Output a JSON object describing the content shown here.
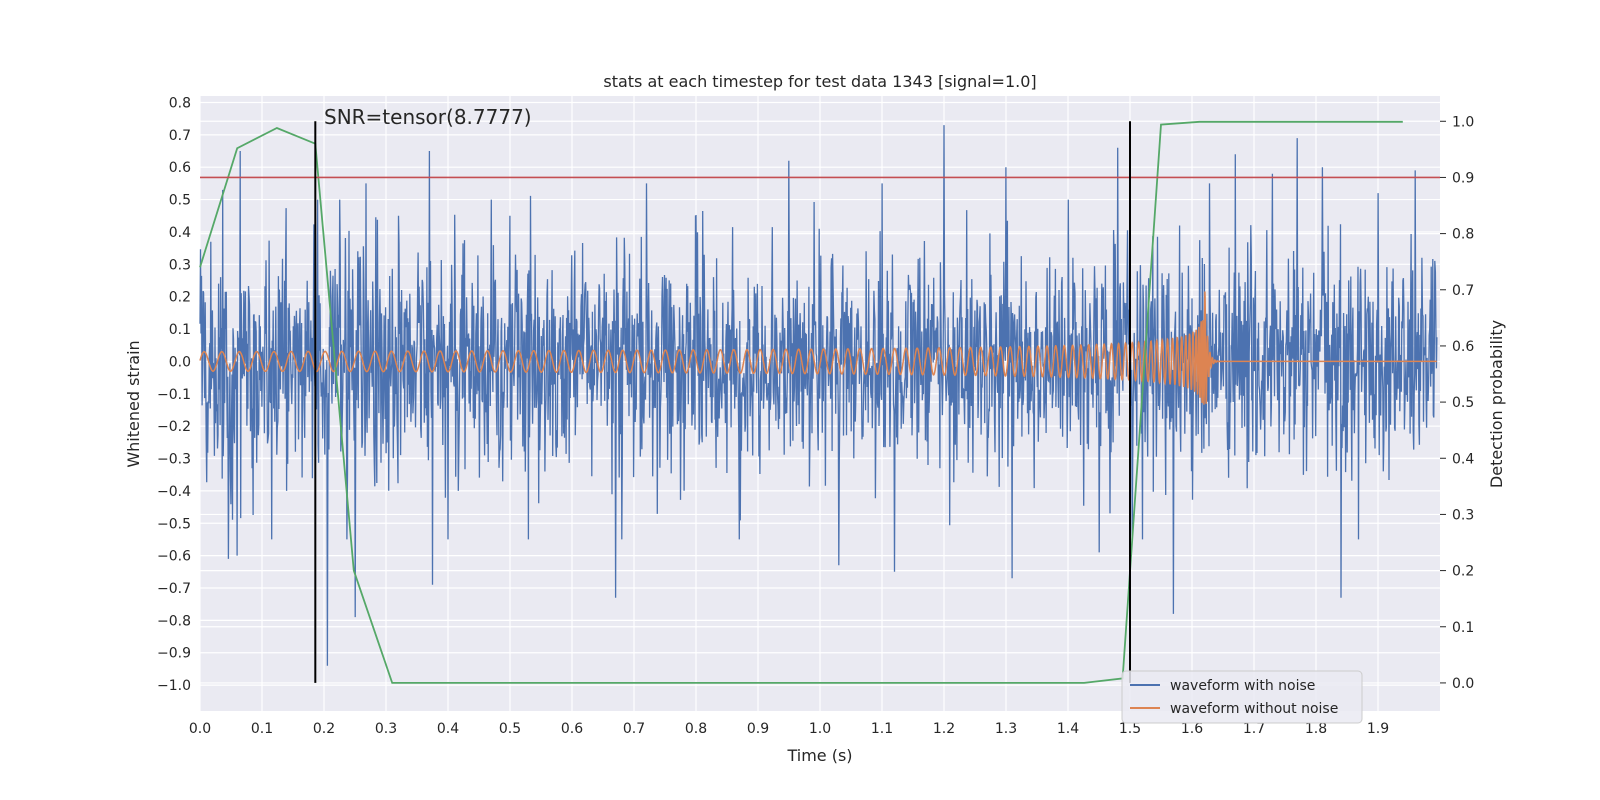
{
  "chart_data": {
    "type": "line",
    "title": "stats at each timestep for test data 1343 [signal=1.0]",
    "xlabel": "Time (s)",
    "ylabel_left": "Whitened strain",
    "ylabel_right": "Detection probability",
    "xlim": [
      0.0,
      2.0
    ],
    "ylim_left": [
      -1.08,
      0.82
    ],
    "ylim_right": [
      -0.05,
      1.045
    ],
    "x_ticks": [
      "0.0",
      "0.1",
      "0.2",
      "0.3",
      "0.4",
      "0.5",
      "0.6",
      "0.7",
      "0.8",
      "0.9",
      "1.0",
      "1.1",
      "1.2",
      "1.3",
      "1.4",
      "1.5",
      "1.6",
      "1.7",
      "1.8",
      "1.9"
    ],
    "y_ticks_left": [
      "0.8",
      "0.7",
      "0.6",
      "0.5",
      "0.4",
      "0.3",
      "0.2",
      "0.1",
      "0.0",
      "−0.1",
      "−0.2",
      "−0.3",
      "−0.4",
      "−0.5",
      "−0.6",
      "−0.7",
      "−0.8",
      "−0.9",
      "−1.0"
    ],
    "y_ticks_right": [
      "1.0",
      "0.9",
      "0.8",
      "0.7",
      "0.6",
      "0.5",
      "0.4",
      "0.3",
      "0.2",
      "0.1",
      "0.0"
    ],
    "grid": true,
    "legend_position": "bottom-right",
    "annotation": "SNR=tensor(8.7777)",
    "series": [
      {
        "name": "waveform with noise",
        "color": "#4c72b0",
        "axis": "left",
        "kind": "noise",
        "approx_std": 0.2,
        "peaks": [
          [
            0.037,
            0.53
          ],
          [
            0.046,
            -0.61
          ],
          [
            0.06,
            -0.6
          ],
          [
            0.065,
            0.65
          ],
          [
            0.14,
            -0.4
          ],
          [
            0.19,
            0.5
          ],
          [
            0.205,
            -0.94
          ],
          [
            0.21,
            -1.0
          ],
          [
            0.21,
            0.28
          ],
          [
            0.225,
            0.5
          ],
          [
            0.237,
            -0.55
          ],
          [
            0.25,
            -0.79
          ],
          [
            0.268,
            0.55
          ],
          [
            0.32,
            0.45
          ],
          [
            0.37,
            0.65
          ],
          [
            0.375,
            -0.69
          ],
          [
            0.4,
            0.6
          ],
          [
            0.4,
            -0.55
          ],
          [
            0.47,
            0.5
          ],
          [
            0.5,
            0.45
          ],
          [
            0.53,
            -0.55
          ],
          [
            0.67,
            -0.73
          ],
          [
            0.68,
            -0.55
          ],
          [
            0.72,
            0.55
          ],
          [
            0.8,
            0.45
          ],
          [
            0.87,
            -0.55
          ],
          [
            0.95,
            0.62
          ],
          [
            1.03,
            -0.63
          ],
          [
            1.1,
            0.55
          ],
          [
            1.12,
            -0.65
          ],
          [
            1.2,
            0.73
          ],
          [
            1.3,
            0.6
          ],
          [
            1.31,
            -0.67
          ],
          [
            1.4,
            0.5
          ],
          [
            1.45,
            -0.59
          ],
          [
            1.48,
            0.66
          ],
          [
            1.52,
            -0.55
          ],
          [
            1.57,
            -0.78
          ],
          [
            1.58,
            0.42
          ],
          [
            1.67,
            0.64
          ],
          [
            1.73,
            0.58
          ],
          [
            1.77,
            0.69
          ],
          [
            1.81,
            0.6
          ],
          [
            1.84,
            -0.73
          ],
          [
            1.9,
            0.52
          ],
          [
            1.96,
            0.59
          ]
        ]
      },
      {
        "name": "waveform without noise",
        "color": "#dd8452",
        "axis": "left",
        "kind": "chirp",
        "start_amplitude": 0.03,
        "peak_amplitude": 0.28,
        "merger_time": 1.62,
        "start_frequency_hz": 35
      },
      {
        "name": "",
        "color": "#55a868",
        "axis": "right",
        "kind": "line",
        "x": [
          0.0,
          0.06,
          0.124,
          0.186,
          0.248,
          0.31,
          1.426,
          1.488,
          1.55,
          1.612,
          1.674,
          1.736,
          1.798,
          1.86,
          1.94
        ],
        "y": [
          0.74,
          0.952,
          0.988,
          0.96,
          0.2,
          0.0,
          0.0,
          0.008,
          0.994,
          0.999,
          0.999,
          0.999,
          0.999,
          0.999,
          0.999
        ]
      }
    ],
    "hlines": [
      {
        "axis": "right",
        "y": 0.9,
        "color": "#c44e52"
      }
    ],
    "vlines": [
      {
        "x": 0.186,
        "y_right_range": [
          0.0,
          1.0
        ],
        "color": "#000000"
      },
      {
        "x": 1.5,
        "y_right_range": [
          0.0,
          1.0
        ],
        "color": "#000000"
      }
    ]
  }
}
